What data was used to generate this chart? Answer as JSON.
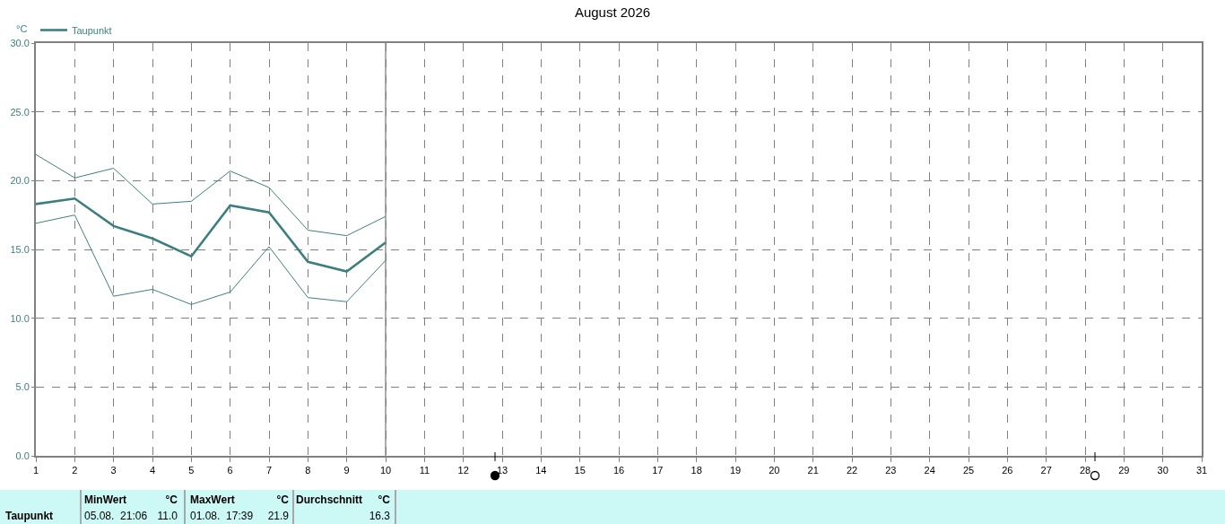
{
  "chart_data": {
    "type": "line",
    "title": "August 2026",
    "ylabel": "°C",
    "x": [
      1,
      2,
      3,
      4,
      5,
      6,
      7,
      8,
      9,
      10
    ],
    "series": [
      {
        "name": "Taupunkt",
        "color": "#3d7f7f",
        "values": [
          18.3,
          18.7,
          16.7,
          15.8,
          14.5,
          18.2,
          17.7,
          14.1,
          13.4,
          15.5
        ]
      },
      {
        "color": "#3d7f7f",
        "values": [
          21.9,
          20.2,
          20.9,
          18.3,
          18.5,
          20.7,
          19.5,
          16.4,
          16.0,
          17.4
        ]
      },
      {
        "color": "#3d7f7f",
        "values": [
          16.9,
          17.5,
          11.6,
          12.1,
          11.0,
          11.9,
          15.2,
          11.5,
          11.2,
          14.2
        ]
      }
    ],
    "xlim": [
      1,
      31
    ],
    "xticks": [
      1,
      2,
      3,
      4,
      5,
      6,
      7,
      8,
      9,
      10,
      11,
      12,
      13,
      14,
      15,
      16,
      17,
      18,
      19,
      20,
      21,
      22,
      23,
      24,
      25,
      26,
      27,
      28,
      29,
      30,
      31
    ],
    "ylim": [
      0,
      30
    ],
    "yticks": [
      {
        "value": 0,
        "label": "0.0"
      },
      {
        "value": 5,
        "label": "5.0"
      },
      {
        "value": 10,
        "label": "10.0"
      },
      {
        "value": 15,
        "label": "15.0"
      },
      {
        "value": 20,
        "label": "20.0"
      },
      {
        "value": 25,
        "label": "25.0"
      },
      {
        "value": 30,
        "label": "30.0"
      }
    ],
    "ref_lines": [
      {
        "axis": "x",
        "value": 10,
        "color": "#808080"
      }
    ],
    "grid": true,
    "legend": "top left",
    "marker": "none",
    "line_style": "solid",
    "annotations": [
      "Taupunkt",
      "MinWert",
      "°C",
      "05.08.  21:06",
      "11.0",
      "MaxWert",
      "°C",
      "01.08.  17:39",
      "21.9",
      "Durchschnitt",
      "°C",
      "16.3"
    ]
  }
}
